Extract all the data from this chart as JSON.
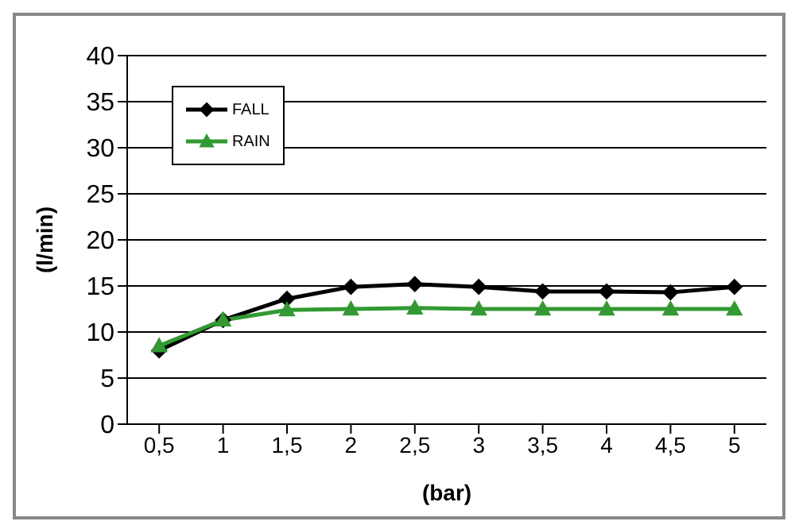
{
  "chart_data": {
    "type": "line",
    "xlabel": "(bar)",
    "ylabel": "(l/min)",
    "categories": [
      "0,5",
      "1",
      "1,5",
      "2",
      "2,5",
      "3",
      "3,5",
      "4",
      "4,5",
      "5"
    ],
    "series": [
      {
        "name": "FALL",
        "color": "#000000",
        "marker": "diamond",
        "values": [
          8,
          11.3,
          13.6,
          14.9,
          15.2,
          14.9,
          14.4,
          14.4,
          14.3,
          14.9
        ]
      },
      {
        "name": "RAIN",
        "color": "#339933",
        "marker": "triangle",
        "values": [
          8.5,
          11.3,
          12.4,
          12.5,
          12.6,
          12.5,
          12.5,
          12.5,
          12.5,
          12.5
        ]
      }
    ],
    "ylim": [
      0,
      40
    ],
    "yticks": [
      0,
      5,
      10,
      15,
      20,
      25,
      30,
      35,
      40
    ],
    "grid": "y",
    "legend": "top left",
    "line_style": "solid"
  }
}
